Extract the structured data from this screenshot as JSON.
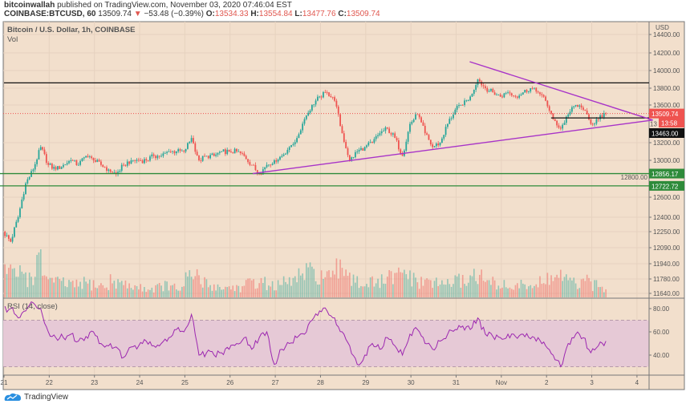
{
  "header": {
    "author": "bitcoinwallah",
    "published": "published on TradingView.com, November 03, 2020 07:46:04 EST",
    "symbol": "COINBASE:BTCUSD, 60",
    "last": "13509.74",
    "change": "−53.48 (−0.39%)",
    "o_label": "O:",
    "o": "13534.33",
    "h_label": "H:",
    "h": "13554.84",
    "l_label": "L:",
    "l": "13477.76",
    "c_label": "C:",
    "c": "13509.74"
  },
  "pane": {
    "title": "Bitcoin / U.S. Dollar, 1h, COINBASE",
    "vol_label": "Vol",
    "rsi_label": "RSI (14, close)",
    "currency": "USD"
  },
  "footer": {
    "brand": "TradingView"
  },
  "colors": {
    "background": "#f2dfcc",
    "up": "#26a69a",
    "down": "#ef5350",
    "rsi": "#9c27b0",
    "rsi_band": "#e6c9d6",
    "green_level": "#2e8b3a",
    "trendline": "#a833c8"
  },
  "chart_data": {
    "type": "candlestick",
    "title": "Bitcoin / U.S. Dollar, 1h, COINBASE",
    "start_open": 12250,
    "interval_hours_of_series": 4,
    "closes_4h": [
      12150,
      12400,
      12750,
      12900,
      13150,
      12950,
      12900,
      12950,
      13000,
      12950,
      13050,
      13000,
      12950,
      12900,
      12850,
      12950,
      13000,
      13000,
      13000,
      13050,
      13050,
      13100,
      13100,
      13100,
      13250,
      13000,
      13050,
      13050,
      13100,
      13100,
      13100,
      13050,
      12950,
      12850,
      12950,
      13000,
      13050,
      13150,
      13250,
      13450,
      13600,
      13700,
      13750,
      13650,
      13300,
      13000,
      13100,
      13150,
      13200,
      13300,
      13350,
      13250,
      13050,
      13400,
      13500,
      13300,
      13150,
      13200,
      13400,
      13550,
      13600,
      13700,
      13900,
      13800,
      13750,
      13700,
      13750,
      13700,
      13750,
      13800,
      13750,
      13650,
      13450,
      13350,
      13500,
      13600,
      13550,
      13400,
      13450,
      13510
    ],
    "volume_4h": [
      60,
      45,
      55,
      40,
      70,
      50,
      35,
      30,
      28,
      25,
      30,
      28,
      25,
      22,
      35,
      30,
      25,
      22,
      20,
      18,
      22,
      25,
      20,
      18,
      40,
      45,
      30,
      25,
      22,
      20,
      22,
      20,
      28,
      35,
      30,
      25,
      25,
      30,
      38,
      45,
      50,
      48,
      45,
      40,
      55,
      60,
      40,
      30,
      30,
      28,
      35,
      40,
      45,
      50,
      35,
      30,
      35,
      28,
      30,
      32,
      35,
      38,
      50,
      40,
      30,
      28,
      25,
      22,
      25,
      28,
      25,
      30,
      40,
      45,
      35,
      30,
      28,
      32,
      25,
      20
    ],
    "rsi_4h": [
      80,
      72,
      78,
      85,
      80,
      60,
      55,
      55,
      58,
      52,
      56,
      60,
      50,
      48,
      47,
      38,
      47,
      48,
      52,
      48,
      50,
      55,
      62,
      60,
      75,
      40,
      42,
      40,
      42,
      45,
      50,
      55,
      45,
      55,
      60,
      32,
      45,
      50,
      55,
      58,
      70,
      78,
      78,
      72,
      60,
      48,
      32,
      40,
      50,
      45,
      55,
      48,
      40,
      58,
      62,
      50,
      45,
      52,
      58,
      62,
      65,
      62,
      72,
      58,
      56,
      55,
      58,
      56,
      58,
      54,
      55,
      48,
      40,
      30,
      50,
      58,
      55,
      42,
      48,
      52
    ],
    "price_ticks": [
      "14400.00",
      "14200.00",
      "14000.00",
      "13800.00",
      "13600.00",
      "13200.00",
      "13000.00",
      "12600.00",
      "12400.00",
      "12250.00",
      "12090.00",
      "11940.00",
      "11780.00",
      "11640.00"
    ],
    "rsi_ticks": [
      "80.00",
      "60.00",
      "40.00"
    ],
    "rsi_band": [
      30,
      70
    ],
    "time_ticks": [
      {
        "label": "21",
        "day": 0
      },
      {
        "label": "22",
        "day": 1
      },
      {
        "label": "23",
        "day": 2
      },
      {
        "label": "24",
        "day": 3
      },
      {
        "label": "25",
        "day": 4
      },
      {
        "label": "26",
        "day": 5
      },
      {
        "label": "27",
        "day": 6
      },
      {
        "label": "28",
        "day": 7
      },
      {
        "label": "29",
        "day": 8
      },
      {
        "label": "30",
        "day": 9
      },
      {
        "label": "31",
        "day": 10
      },
      {
        "label": "Nov",
        "day": 11
      },
      {
        "label": "2",
        "day": 12
      },
      {
        "label": "3",
        "day": 13
      },
      {
        "label": "4",
        "day": 14
      }
    ],
    "levels": [
      {
        "name": "resistance",
        "price": 13860,
        "color": "#111111",
        "from_day": 0,
        "label": ""
      },
      {
        "name": "support-1",
        "price": 12856.17,
        "color": "#2e8b3a",
        "from_day": -0.1,
        "label": "12856.17"
      },
      {
        "name": "support-2",
        "price": 12722.72,
        "color": "#2e8b3a",
        "from_day": -0.1,
        "label": "12722.72"
      },
      {
        "name": "breakout",
        "price": 13463,
        "color": "#111111",
        "from_day": 12.1,
        "label": "13463.00"
      }
    ],
    "trendlines": [
      {
        "name": "descending-trendline",
        "from": [
          10.3,
          14100
        ],
        "to": [
          14.35,
          13440
        ]
      },
      {
        "name": "ascending-trendline",
        "from": [
          5.5,
          12856
        ],
        "to": [
          14.35,
          13440
        ]
      }
    ],
    "current_price": {
      "label": "13509.74",
      "price": 13509.74
    },
    "countdown": "13:58",
    "hidden_tick": "12800.00",
    "partial_tick": "13"
  }
}
